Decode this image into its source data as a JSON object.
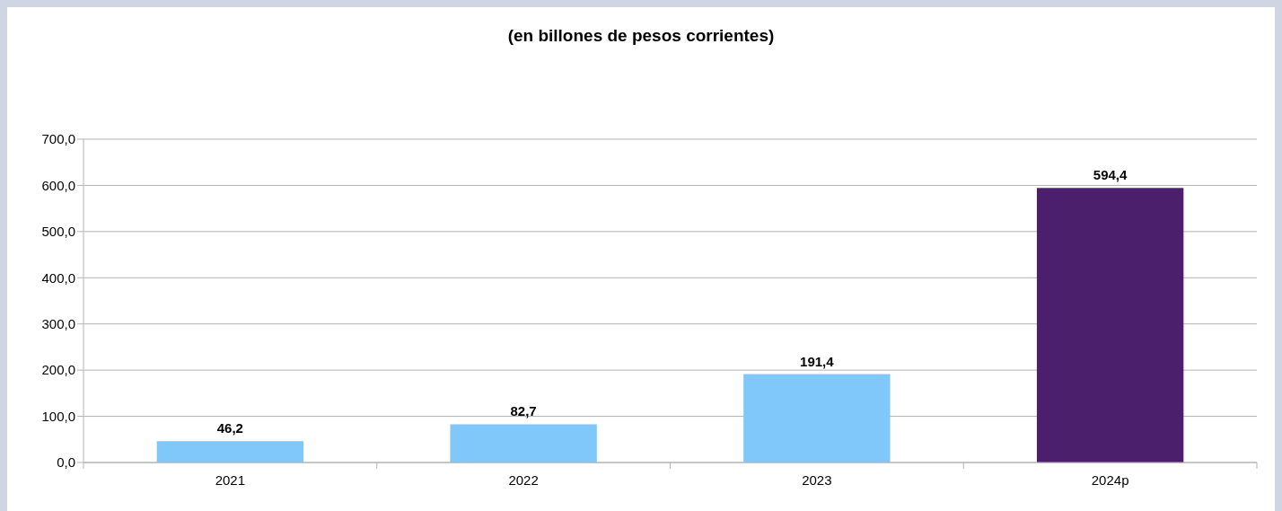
{
  "chart_data": {
    "type": "bar",
    "title": "(en billones de pesos corrientes)",
    "categories": [
      "2021",
      "2022",
      "2023",
      "2024p"
    ],
    "values": [
      46.2,
      82.7,
      191.4,
      594.4
    ],
    "colors": [
      "#80c8fa",
      "#80c8fa",
      "#80c8fa",
      "#4b1f6b"
    ],
    "value_labels": [
      "46,2",
      "82,7",
      "191,4",
      "594,4"
    ],
    "ylim": [
      0,
      700
    ],
    "yticks": [
      {
        "value": 0,
        "label": "0,0"
      },
      {
        "value": 100,
        "label": "100,0"
      },
      {
        "value": 200,
        "label": "200,0"
      },
      {
        "value": 300,
        "label": "300,0"
      },
      {
        "value": 400,
        "label": "400,0"
      },
      {
        "value": 500,
        "label": "500,0"
      },
      {
        "value": 600,
        "label": "600,0"
      },
      {
        "value": 700,
        "label": "700,0"
      }
    ],
    "grid": "y"
  }
}
